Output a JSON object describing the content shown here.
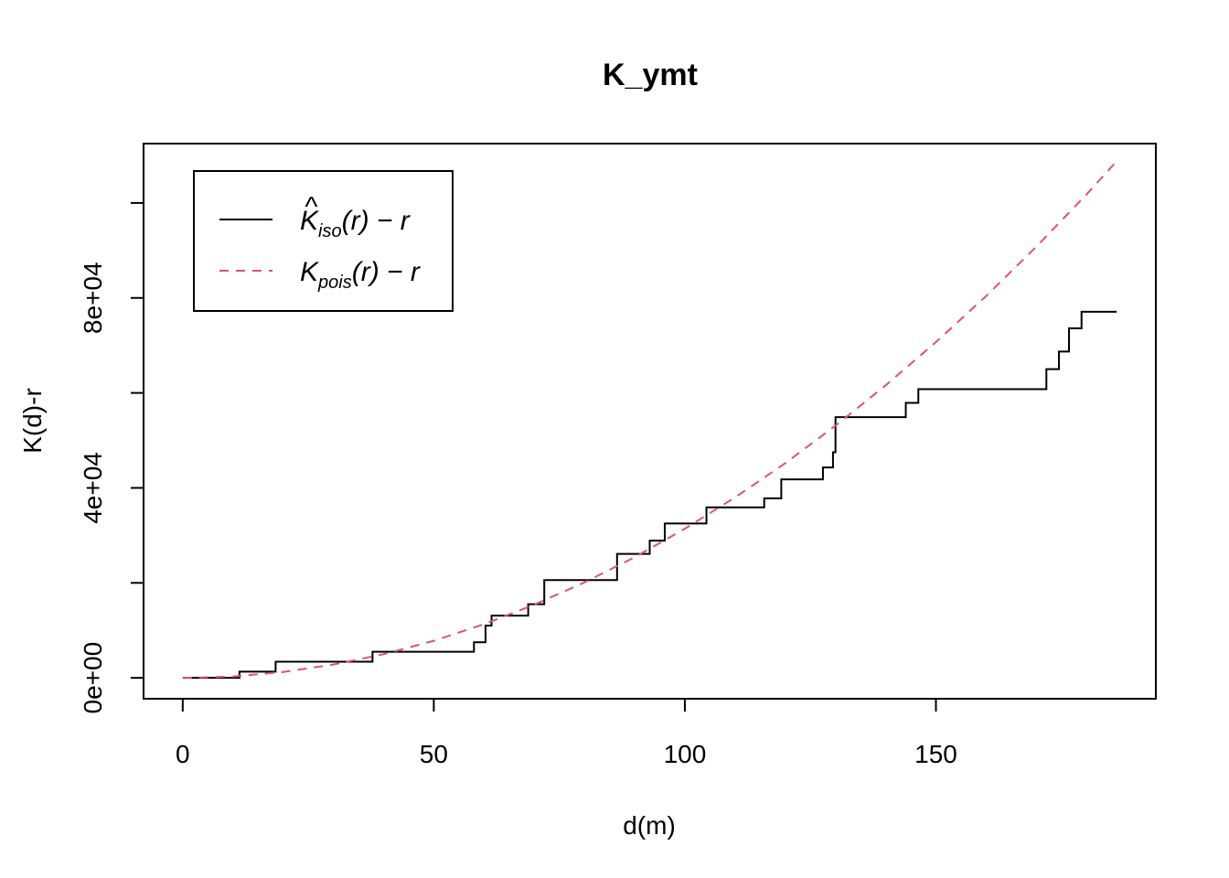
{
  "chart_data": {
    "type": "line",
    "title": "K_ymt",
    "xlabel": "d(m)",
    "ylabel": "K(d)-r",
    "xlim": [
      -7.8,
      193.8
    ],
    "ylim": [
      -4400,
      112500
    ],
    "x_ticks": [
      0,
      50,
      100,
      150
    ],
    "x_tick_labels": [
      "0",
      "50",
      "100",
      "150"
    ],
    "y_ticks": [
      0,
      20000,
      40000,
      60000,
      80000,
      100000
    ],
    "y_tick_labels": [
      "0e+00",
      "",
      "4e+04",
      "",
      "8e+04",
      ""
    ],
    "grid": false,
    "legend_position": "top-left",
    "series": [
      {
        "name": "K̂iso(r) − r",
        "label_main": "K",
        "label_sub": "iso",
        "label_rest": "(r) − r",
        "hat": true,
        "style": "solid",
        "color": "#000000",
        "step": true,
        "x": [
          0,
          11.3,
          18.5,
          37.8,
          58.0,
          60.3,
          61.5,
          68.8,
          72.0,
          86.5,
          93.0,
          96.0,
          104.3,
          115.8,
          119.2,
          127.5,
          129.5,
          130.0,
          130.5,
          144.0,
          146.5,
          172.0,
          174.5,
          176.5,
          179.0,
          180.5,
          186.0
        ],
        "y": [
          0,
          1300,
          3400,
          5500,
          7500,
          11000,
          13100,
          15500,
          20600,
          26100,
          28900,
          32500,
          35900,
          37800,
          41800,
          44300,
          47500,
          54900,
          54900,
          57900,
          60800,
          65000,
          68700,
          73600,
          77100,
          77100,
          77100
        ]
      },
      {
        "name": "Kpois(r) − r",
        "label_main": "K",
        "label_sub": "pois",
        "label_rest": "(r) − r",
        "hat": false,
        "style": "dashed",
        "color": "#DF536B",
        "step": false,
        "x": [
          0,
          10,
          20,
          30,
          40,
          50,
          60,
          70,
          80,
          90,
          100,
          110,
          120,
          130,
          140,
          150,
          160,
          170,
          180,
          186
        ],
        "y": [
          -10,
          280,
          1230,
          2800,
          4980,
          7800,
          11300,
          15400,
          20100,
          25400,
          31400,
          38000,
          45200,
          53100,
          61600,
          70700,
          80400,
          90800,
          101800,
          108800
        ]
      }
    ]
  }
}
